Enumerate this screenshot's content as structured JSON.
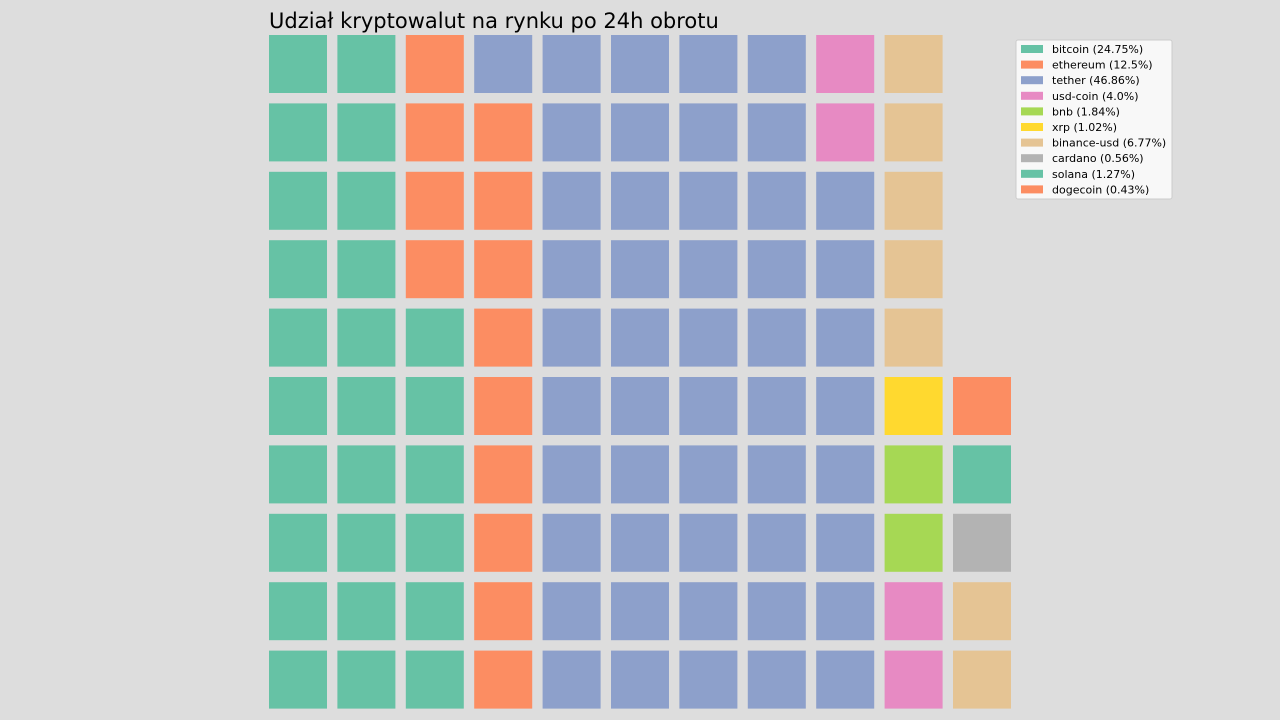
{
  "chart_data": {
    "type": "waffle",
    "title": "Udział kryptowalut na rynku po 24h obrotu",
    "grid": {
      "rows": 10,
      "columns": 11
    },
    "legend_position": "top-right",
    "series": [
      {
        "name": "bitcoin",
        "label": "bitcoin (24.75%)",
        "value": 24.75,
        "color": "#66c2a5"
      },
      {
        "name": "ethereum",
        "label": "ethereum (12.5%)",
        "value": 12.5,
        "color": "#fc8d62"
      },
      {
        "name": "tether",
        "label": "tether (46.86%)",
        "value": 46.86,
        "color": "#8da0cb"
      },
      {
        "name": "usd-coin",
        "label": "usd-coin (4.0%)",
        "value": 4.0,
        "color": "#e78ac3"
      },
      {
        "name": "bnb",
        "label": "bnb (1.84%)",
        "value": 1.84,
        "color": "#a6d854"
      },
      {
        "name": "xrp",
        "label": "xrp (1.02%)",
        "value": 1.02,
        "color": "#ffd92f"
      },
      {
        "name": "binance-usd",
        "label": "binance-usd (6.77%)",
        "value": 6.77,
        "color": "#e5c494"
      },
      {
        "name": "cardano",
        "label": "cardano (0.56%)",
        "value": 0.56,
        "color": "#b3b3b3"
      },
      {
        "name": "solana",
        "label": "solana (1.27%)",
        "value": 1.27,
        "color": "#66c2a5"
      },
      {
        "name": "dogecoin",
        "label": "dogecoin (0.43%)",
        "value": 0.43,
        "color": "#fc8d62"
      }
    ],
    "cell_counts": [
      26,
      13,
      49,
      4,
      2,
      1,
      7,
      1,
      1,
      1
    ]
  }
}
